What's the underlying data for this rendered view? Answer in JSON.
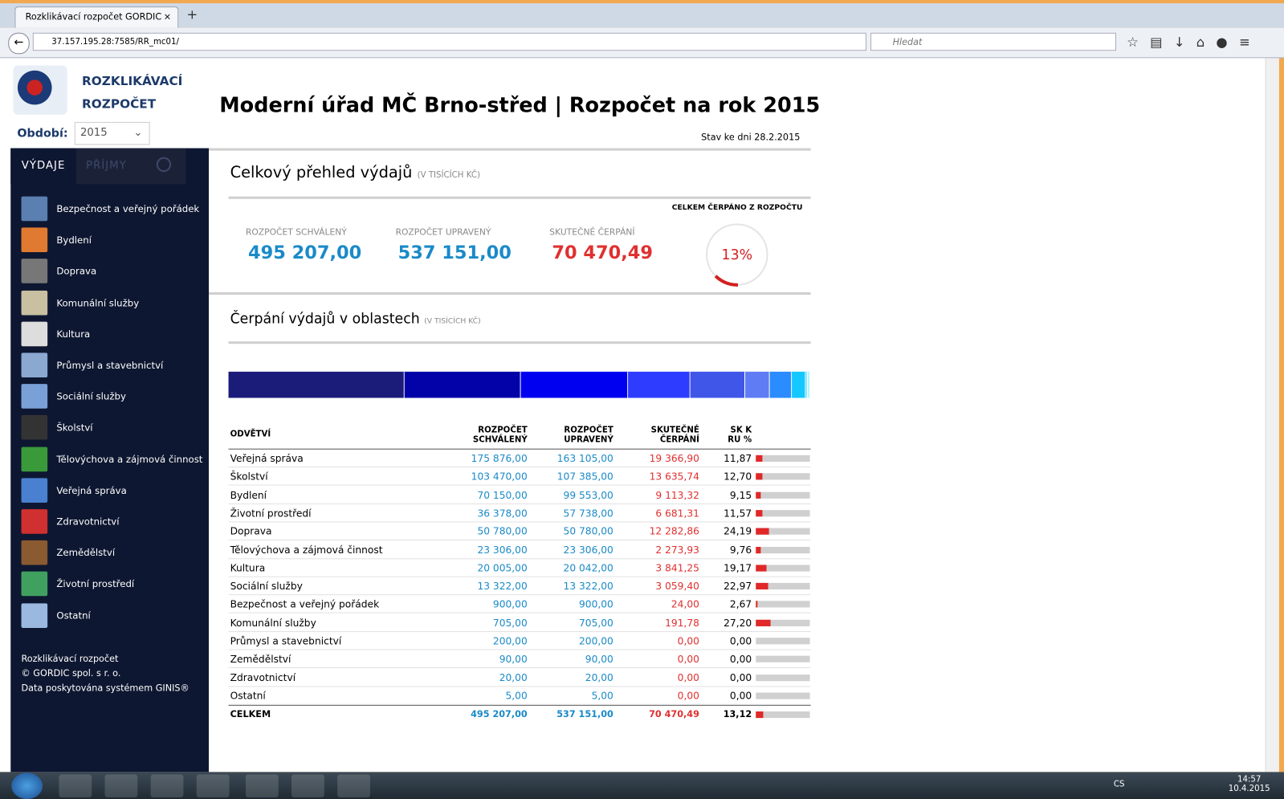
{
  "browser": {
    "tab_title": "Rozklikávací rozpočet GORDIC",
    "url": "37.157.195.28:7585/RR_mc01/",
    "search_placeholder": "Hledat"
  },
  "header": {
    "logo_line1": "ROZKLIKÁVACÍ",
    "logo_line2": "ROZPOČET",
    "period_label": "Období:",
    "period_value": "2015",
    "title": "Moderní úřad MČ Brno-střed | Rozpočet na rok 2015",
    "status": "Stav ke dni 28.2.2015"
  },
  "sidebar": {
    "tabs": [
      "VÝDAJE",
      "PŘÍJMY"
    ],
    "menu": [
      "Bezpečnost a veřejný pořádek",
      "Bydlení",
      "Doprava",
      "Komunální služby",
      "Kultura",
      "Průmysl a stavebnictví",
      "Sociální služby",
      "Školství",
      "Tělovýchova a zájmová činnost",
      "Veřejná správa",
      "Zdravotnictví",
      "Zemědělství",
      "Životní prostředí",
      "Ostatní"
    ],
    "footer": [
      "Rozklikávací rozpočet",
      "© GORDIC spol. s r. o.",
      "Data poskytována systémem GINIS®"
    ]
  },
  "overview": {
    "title": "Celkový přehled výdajů",
    "unit": "(V TISÍCÍCH KČ)",
    "gauge_title": "CELKEM ČERPÁNO Z ROZPOČTU",
    "kpis": [
      {
        "label": "ROZPOČET SCHVÁLENÝ",
        "value": "495 207,00"
      },
      {
        "label": "ROZPOČET UPRAVENÝ",
        "value": "537 151,00"
      },
      {
        "label": "SKUTEČNÉ ČERPÁNÍ",
        "value": "70 470,49"
      }
    ],
    "gauge": {
      "value": 13,
      "label": "13%"
    }
  },
  "areas": {
    "title": "Čerpání výdajů v oblastech",
    "unit": "(V TISÍCÍCH KČ)",
    "bar_colors": [
      "#1b1b7a",
      "#0202a8",
      "#0000f0",
      "#2e3cff",
      "#4056e8",
      "#5f7cf5",
      "#2a8cff",
      "#14c8ff",
      "#18d8ff",
      "#30e0ff",
      "#50e8ff",
      "#70eeff",
      "#90f2ff",
      "#b0f6ff"
    ]
  },
  "table": {
    "header": [
      [
        "ODVĚTVÍ"
      ],
      [
        "ROZPOČET",
        "SCHVÁLENÝ"
      ],
      [
        "ROZPOČET",
        "UPRAVENÝ"
      ],
      [
        "SKUTEČNÉ",
        "ČERPÁNÍ"
      ],
      [
        "SK K",
        "RU %"
      ]
    ],
    "rows": [
      [
        "Veřejná správa",
        "175 876,00",
        "163 105,00",
        "19 366,90",
        "11,87"
      ],
      [
        "Školství",
        "103 470,00",
        "107 385,00",
        "13 635,74",
        "12,70"
      ],
      [
        "Bydlení",
        "70 150,00",
        "99 553,00",
        "9 113,32",
        "9,15"
      ],
      [
        "Životní prostředí",
        "36 378,00",
        "57 738,00",
        "6 681,31",
        "11,57"
      ],
      [
        "Doprava",
        "50 780,00",
        "50 780,00",
        "12 282,86",
        "24,19"
      ],
      [
        "Tělovýchova a zájmová činnost",
        "23 306,00",
        "23 306,00",
        "2 273,93",
        "9,76"
      ],
      [
        "Kultura",
        "20 005,00",
        "20 042,00",
        "3 841,25",
        "19,17"
      ],
      [
        "Sociální služby",
        "13 322,00",
        "13 322,00",
        "3 059,40",
        "22,97"
      ],
      [
        "Bezpečnost a veřejný pořádek",
        "900,00",
        "900,00",
        "24,00",
        "2,67"
      ],
      [
        "Komunální služby",
        "705,00",
        "705,00",
        "191,78",
        "27,20"
      ],
      [
        "Průmysl a stavebnictví",
        "200,00",
        "200,00",
        "0,00",
        "0,00"
      ],
      [
        "Zemědělství",
        "90,00",
        "90,00",
        "0,00",
        "0,00"
      ],
      [
        "Zdravotnictví",
        "20,00",
        "20,00",
        "0,00",
        "0,00"
      ],
      [
        "Ostatní",
        "5,00",
        "5,00",
        "0,00",
        "0,00"
      ]
    ],
    "total": [
      "CELKEM",
      "495 207,00",
      "537 151,00",
      "70 470,49",
      "13,12"
    ]
  },
  "taskbar": {
    "language": "CS",
    "time": "14:57",
    "date": "10.4.2015"
  }
}
